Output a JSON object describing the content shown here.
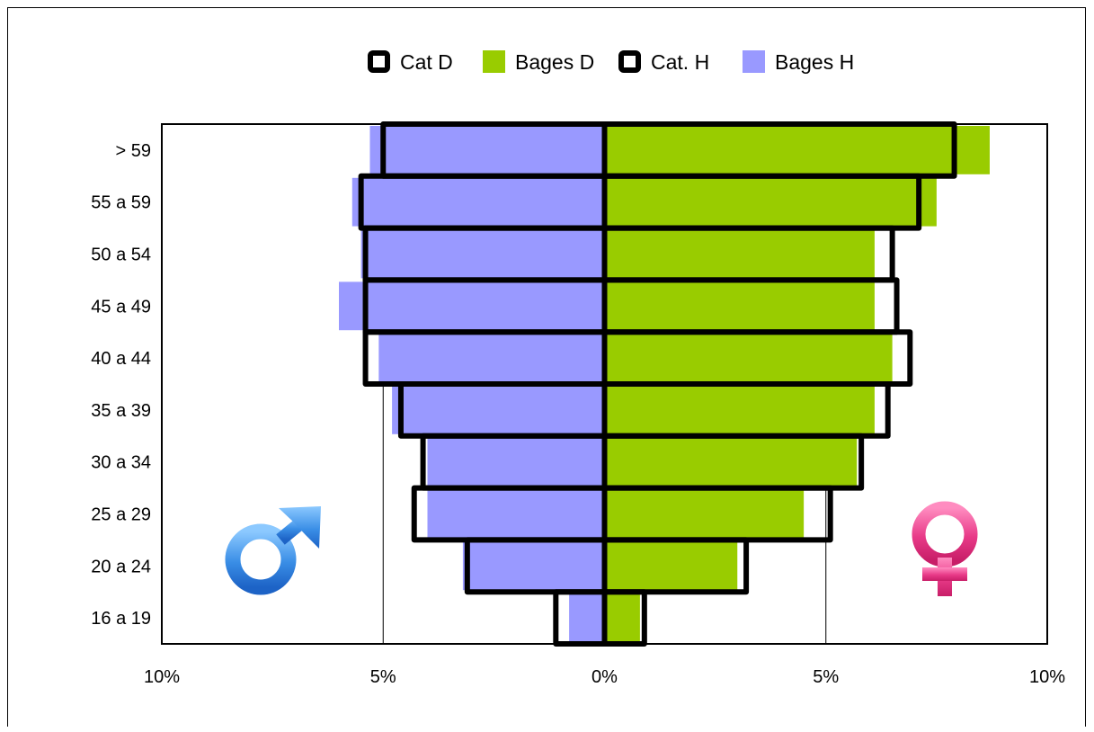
{
  "chart_data": {
    "type": "bar",
    "subtype": "population-pyramid",
    "categories": [
      "16 a 19",
      "20 a 24",
      "25 a 29",
      "30 a 34",
      "35 a 39",
      "40 a 44",
      "45 a 49",
      "50 a 54",
      "55 a 59",
      "> 59"
    ],
    "series": [
      {
        "name": "Cat D",
        "side": "right",
        "style": "outline",
        "color": "#000000",
        "values": [
          0.9,
          3.2,
          5.1,
          5.8,
          6.4,
          6.9,
          6.6,
          6.5,
          7.1,
          7.9
        ]
      },
      {
        "name": "Bages D",
        "side": "right",
        "style": "fill",
        "color": "#99CC00",
        "values": [
          0.8,
          3.0,
          4.5,
          5.7,
          6.1,
          6.5,
          6.1,
          6.1,
          7.5,
          8.7
        ]
      },
      {
        "name": "Cat. H",
        "side": "left",
        "style": "outline",
        "color": "#000000",
        "values": [
          1.1,
          3.1,
          4.3,
          4.1,
          4.6,
          5.4,
          5.4,
          5.4,
          5.5,
          5.0
        ]
      },
      {
        "name": "Bages H",
        "side": "left",
        "style": "fill",
        "color": "#9999FF",
        "values": [
          0.8,
          3.2,
          4.0,
          4.0,
          4.8,
          5.1,
          6.0,
          5.5,
          5.7,
          5.3
        ]
      }
    ],
    "x_ticks": [
      "10%",
      "5%",
      "0%",
      "5%",
      "10%"
    ],
    "xlim": [
      -10,
      10
    ],
    "legend_position": "top",
    "grid": "vertical lines at ±5%",
    "xlabel": "",
    "ylabel": "",
    "title": ""
  },
  "symbols": {
    "male_icon": "mars-symbol",
    "female_icon": "venus-symbol",
    "male_color": "#3A8EE6",
    "female_color": "#E83A88"
  }
}
